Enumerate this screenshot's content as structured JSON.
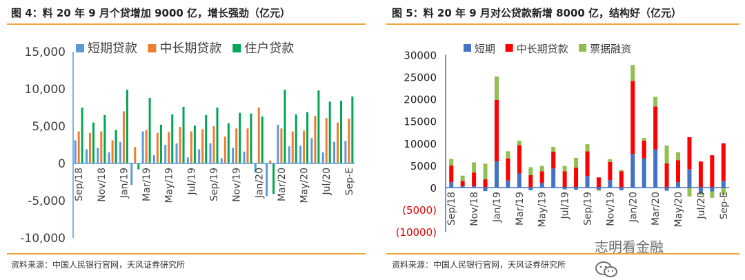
{
  "left": {
    "title": "图 4：料 20 年 9 月个贷增加 9000 亿，增长强劲（亿元）",
    "source": "资料来源：中国人民银行官网，天风证券研究所"
  },
  "right": {
    "title": "图 5：料 20 年 9 月对公贷款新增 8000 亿，结构好（亿元）",
    "source": "资料来源：中国人民银行官网，天风证券研究所"
  },
  "watermark": "志明看金融",
  "chart_data": [
    {
      "type": "bar",
      "title": "图 4：料 20 年 9 月个贷增加 9000 亿，增长强劲（亿元）",
      "categories": [
        "Sep/18",
        "Oct/18",
        "Nov/18",
        "Dec/18",
        "Jan/19",
        "Feb/19",
        "Mar/19",
        "Apr/19",
        "May/19",
        "Jun/19",
        "Jul/19",
        "Aug/19",
        "Sep/19",
        "Oct/19",
        "Nov/19",
        "Dec/19",
        "Jan/20",
        "Feb/20",
        "Mar/20",
        "Apr/20",
        "May/20",
        "Jun/20",
        "Jul/20",
        "Aug/20",
        "Sep-E"
      ],
      "tick_labels": [
        "Sep/18",
        "Nov/18",
        "Jan/19",
        "Mar/19",
        "May/19",
        "Jul/19",
        "Sep/19",
        "Nov/19",
        "Jan/20",
        "Mar/20",
        "May/20",
        "Jul/20",
        "Sep-E"
      ],
      "series": [
        {
          "name": "短期贷款",
          "color": "#5b9bd5",
          "values": [
            3100,
            1900,
            2100,
            1500,
            2900,
            -2900,
            4300,
            1100,
            2500,
            2700,
            800,
            1900,
            2700,
            700,
            2100,
            1600,
            -1200,
            -4400,
            5200,
            2300,
            2400,
            3400,
            1500,
            2900,
            3000
          ]
        },
        {
          "name": "中长期贷款",
          "color": "#ed7d31",
          "values": [
            4300,
            4100,
            4300,
            3100,
            7000,
            2200,
            4500,
            4100,
            4200,
            4900,
            4300,
            4600,
            5000,
            3600,
            4700,
            4700,
            7500,
            400,
            4700,
            4300,
            4400,
            6400,
            6100,
            5500,
            6000
          ]
        },
        {
          "name": "住户贷款",
          "color": "#00a651",
          "values": [
            7500,
            5500,
            6500,
            4500,
            9900,
            -800,
            8800,
            5200,
            6600,
            7600,
            5100,
            6500,
            7500,
            5400,
            6800,
            6700,
            6300,
            -4100,
            9900,
            6600,
            6900,
            9800,
            8300,
            8400,
            9000
          ]
        }
      ],
      "ylim": [
        -10000,
        15000
      ],
      "yticks": [
        -10000,
        -5000,
        0,
        5000,
        10000,
        15000
      ],
      "ytick_labels": [
        "-10,000",
        "-5,000",
        "0",
        "5,000",
        "10,000",
        "15,000"
      ],
      "legend_position": "top"
    },
    {
      "type": "bar",
      "title": "图 5：料 20 年 9 月对公贷款新增 8000 亿，结构好（亿元）",
      "stacked": true,
      "categories": [
        "Sep/18",
        "Oct/18",
        "Nov/18",
        "Dec/18",
        "Jan/19",
        "Feb/19",
        "Mar/19",
        "Apr/19",
        "May/19",
        "Jun/19",
        "Jul/19",
        "Aug/19",
        "Sep/19",
        "Oct/19",
        "Nov/19",
        "Dec/19",
        "Jan/20",
        "Feb/20",
        "Mar/20",
        "Apr/20",
        "May/20",
        "Jun/20",
        "Jul/20",
        "Aug/20",
        "Sep-E"
      ],
      "tick_labels": [
        "Sep/18",
        "Nov/18",
        "Jan/19",
        "Mar/19",
        "May/19",
        "Jul/19",
        "Sep/19",
        "Nov/19",
        "Jan/20",
        "Mar/20",
        "May/20",
        "Jul/20",
        "Sep-E"
      ],
      "series": [
        {
          "name": "短期",
          "color": "#4472c4",
          "values": [
            1200,
            300,
            300,
            -800,
            5900,
            1600,
            3200,
            -600,
            1100,
            4300,
            -400,
            -500,
            2600,
            -500,
            1700,
            -600,
            7600,
            6600,
            8600,
            -700,
            1200,
            4100,
            -1300,
            -900,
            1500
          ]
        },
        {
          "name": "中长期贷款",
          "color": "#ff0000",
          "values": [
            3800,
            1200,
            3100,
            1900,
            13900,
            5000,
            6400,
            2800,
            2600,
            3800,
            3700,
            4500,
            5600,
            2300,
            4100,
            3700,
            16500,
            4000,
            9700,
            5500,
            5000,
            7300,
            5900,
            7300,
            8500
          ]
        },
        {
          "name": "票据融资",
          "color": "#92c050",
          "values": [
            1500,
            1200,
            2300,
            3500,
            5300,
            1600,
            1000,
            1800,
            1200,
            1100,
            1200,
            2200,
            1600,
            -200,
            600,
            300,
            3600,
            600,
            2200,
            4000,
            1800,
            -2000,
            -400,
            -1400,
            -1600
          ]
        }
      ],
      "ylim": [
        -10000,
        30000
      ],
      "yticks": [
        -10000,
        -5000,
        0,
        5000,
        10000,
        15000,
        20000,
        25000,
        30000
      ],
      "ytick_labels": [
        "(10000)",
        "(5000)",
        "0",
        "5000",
        "10000",
        "15000",
        "20000",
        "25000",
        "30000"
      ],
      "legend_position": "top"
    }
  ]
}
